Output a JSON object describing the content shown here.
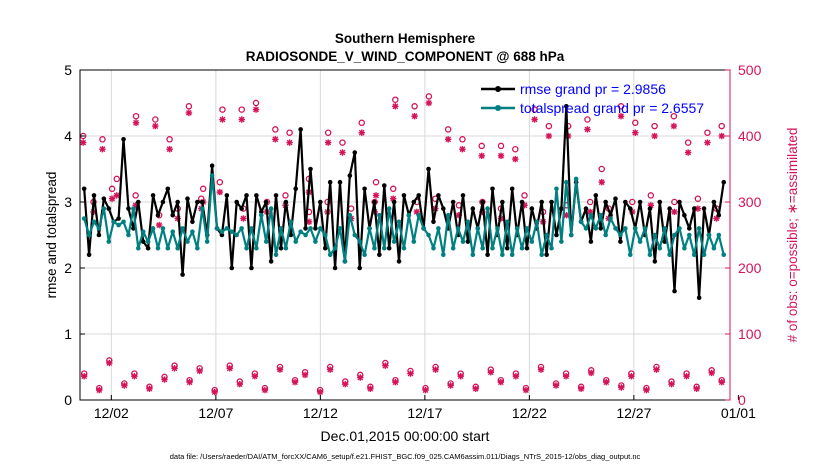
{
  "chart_data": {
    "type": "line",
    "title_line1": "Southern Hemisphere",
    "title_line2": "RADIOSONDE_V_WIND_COMPONENT @ 688 hPa",
    "xlabel": "Dec.01,2015 00:00:00 start",
    "ylabel_left": "rmse and totalspread",
    "ylabel_right": "# of obs: o=possible; ∗=assimilated",
    "footer": "data file: /Users/raeder/DAI/ATM_forcXX/CAM6_setup/f.e21.FHIST_BGC.f09_025.CAM6assim.011/Diags_NTrS_2015-12/obs_diag_output.nc",
    "xlim": [
      0.5,
      31.6
    ],
    "ylim_left": [
      0,
      5
    ],
    "ylim_right": [
      0,
      500
    ],
    "x_tick_values": [
      2,
      7,
      12,
      17,
      22,
      27,
      32
    ],
    "x_tick_labels": [
      "12/02",
      "12/07",
      "12/12",
      "12/17",
      "12/22",
      "12/27",
      "01/01"
    ],
    "y_left_ticks": [
      "0",
      "1",
      "2",
      "3",
      "4",
      "5"
    ],
    "y_right_ticks": [
      "0",
      "100",
      "200",
      "300",
      "400",
      "500"
    ],
    "colors": {
      "rmse": "#000000",
      "spread": "#008080",
      "obs": "#d4145a",
      "legend_text": "#0000ff",
      "axis": "#000000",
      "grid": "#d8d8d8"
    },
    "series": [
      {
        "name": "rmse grand pr = 2.9856",
        "key": "rmse",
        "values": [
          3.2,
          2.2,
          3.1,
          2.5,
          3.05,
          2.9,
          2.7,
          2.75,
          3.95,
          2.9,
          2.6,
          3.0,
          2.4,
          2.3,
          3.1,
          2.8,
          3.0,
          3.2,
          2.8,
          3.0,
          1.9,
          3.05,
          2.7,
          3.0,
          3.0,
          2.5,
          3.55,
          2.6,
          2.5,
          3.1,
          2.0,
          3.0,
          2.9,
          3.1,
          2.0,
          3.1,
          2.85,
          3.0,
          2.1,
          3.1,
          2.3,
          3.0,
          2.5,
          3.2,
          4.1,
          2.6,
          3.5,
          2.6,
          3.0,
          2.3,
          3.3,
          2.0,
          3.3,
          2.1,
          3.4,
          3.75,
          2.0,
          3.2,
          2.6,
          3.0,
          2.2,
          3.25,
          2.3,
          3.0,
          2.1,
          3.1,
          2.8,
          3.0,
          3.1,
          2.6,
          3.5,
          2.7,
          3.1,
          2.9,
          2.6,
          3.0,
          2.5,
          3.1,
          2.4,
          2.9,
          2.6,
          3.0,
          2.2,
          3.2,
          2.5,
          3.0,
          2.3,
          3.2,
          2.5,
          3.0,
          2.3,
          2.9,
          2.6,
          3.0,
          2.2,
          3.0,
          2.5,
          2.9,
          4.45,
          2.5,
          3.3,
          2.7,
          2.9,
          2.4,
          3.1,
          2.6,
          3.0,
          2.8,
          3.05,
          2.4,
          3.0,
          2.9,
          2.6,
          3.0,
          2.5,
          2.9,
          2.1,
          3.0,
          2.4,
          2.9,
          1.65,
          3.0,
          2.8,
          2.6,
          2.9,
          1.55,
          2.9,
          2.5,
          3.0,
          2.8,
          3.3
        ]
      },
      {
        "name": "totalspread grand pr = 2.6557",
        "key": "spread",
        "values": [
          2.75,
          2.5,
          2.7,
          2.6,
          2.9,
          2.4,
          2.7,
          2.65,
          2.7,
          2.5,
          2.9,
          2.3,
          2.55,
          2.4,
          2.6,
          2.3,
          2.6,
          2.3,
          2.55,
          2.3,
          2.6,
          2.4,
          2.55,
          2.3,
          2.9,
          2.4,
          3.4,
          2.6,
          2.55,
          2.6,
          2.55,
          2.5,
          2.6,
          2.3,
          2.6,
          2.3,
          2.8,
          2.4,
          2.9,
          2.2,
          2.6,
          2.3,
          2.7,
          2.4,
          2.55,
          2.5,
          2.6,
          2.4,
          2.6,
          2.5,
          2.2,
          2.3,
          2.6,
          2.1,
          2.8,
          2.5,
          2.4,
          2.2,
          2.6,
          2.3,
          2.8,
          2.3,
          2.9,
          2.4,
          2.7,
          2.3,
          2.8,
          2.4,
          2.8,
          2.6,
          2.5,
          2.3,
          2.6,
          2.2,
          2.8,
          2.3,
          2.6,
          2.4,
          2.7,
          2.2,
          2.6,
          2.3,
          2.9,
          2.3,
          2.6,
          2.2,
          2.7,
          2.2,
          2.6,
          2.3,
          2.6,
          2.4,
          2.7,
          2.2,
          2.5,
          2.3,
          3.2,
          2.4,
          3.3,
          2.5,
          3.35,
          2.7,
          2.6,
          2.8,
          2.6,
          2.8,
          2.5,
          2.75,
          2.6,
          2.5,
          2.6,
          2.2,
          2.6,
          2.4,
          2.6,
          2.2,
          2.5,
          2.3,
          2.6,
          2.2,
          2.5,
          2.6,
          2.3,
          2.5,
          2.2,
          2.6,
          2.2,
          2.5,
          2.3,
          2.5,
          2.2
        ]
      }
    ],
    "obs_possible_high": [
      400,
      395,
      335,
      430,
      425,
      395,
      445,
      320,
      440,
      440,
      450,
      410,
      405,
      335,
      405,
      390,
      420,
      330,
      455,
      445,
      460,
      410,
      395,
      385,
      385,
      380,
      440,
      415,
      415,
      425,
      350,
      445,
      420,
      415,
      430,
      390,
      405,
      415
    ],
    "obs_assimilated_high": [
      390,
      380,
      310,
      420,
      415,
      380,
      435,
      300,
      425,
      425,
      440,
      395,
      390,
      315,
      390,
      375,
      405,
      310,
      445,
      430,
      450,
      395,
      380,
      370,
      370,
      365,
      425,
      400,
      400,
      410,
      330,
      430,
      405,
      400,
      415,
      375,
      390,
      400
    ],
    "obs_possible_mid": [
      300,
      320,
      310,
      280,
      290,
      305,
      330,
      290,
      300,
      310,
      285,
      300,
      290,
      300,
      320,
      300,
      305,
      295,
      300,
      290,
      310,
      285,
      295,
      300,
      290,
      300,
      310,
      300,
      305,
      290
    ],
    "obs_assimilated_mid": [
      285,
      305,
      295,
      265,
      275,
      290,
      315,
      275,
      285,
      295,
      270,
      285,
      275,
      285,
      305,
      285,
      290,
      280,
      285,
      275,
      295,
      270,
      280,
      285,
      275,
      285,
      295,
      285,
      290,
      275
    ],
    "obs_possible_low": [
      40,
      18,
      60,
      25,
      40,
      20,
      35,
      52,
      30,
      48,
      15,
      52,
      28,
      40,
      18,
      50,
      30,
      42,
      15,
      50,
      28,
      38,
      20,
      56,
      30,
      44,
      18,
      50,
      25,
      40,
      20,
      46,
      30,
      40,
      18,
      50,
      25,
      40,
      20,
      45,
      30,
      22,
      40,
      18,
      50,
      28,
      40,
      20,
      45,
      30
    ],
    "obs_assimilated_low": [
      36,
      15,
      56,
      22,
      36,
      17,
      31,
      48,
      27,
      44,
      12,
      48,
      24,
      36,
      15,
      46,
      27,
      38,
      12,
      46,
      24,
      34,
      17,
      52,
      27,
      40,
      15,
      46,
      22,
      36,
      17,
      42,
      27,
      36,
      15,
      46,
      22,
      36,
      17,
      41,
      27,
      19,
      36,
      15,
      46,
      24,
      36,
      17,
      41,
      27
    ]
  }
}
